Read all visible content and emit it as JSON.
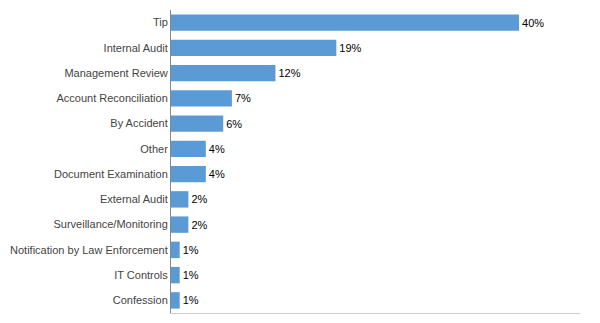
{
  "chart_data": {
    "type": "bar",
    "orientation": "horizontal",
    "categories": [
      "Confession",
      "IT Controls",
      "Notification by Law Enforcement",
      "Surveillance/Monitoring",
      "External Audit",
      "Document Examination",
      "Other",
      "By Accident",
      "Account Reconciliation",
      "Management Review",
      "Internal Audit",
      "Tip"
    ],
    "values": [
      1,
      1,
      1,
      2,
      2,
      4,
      4,
      6,
      7,
      12,
      19,
      40
    ],
    "value_labels": [
      "1%",
      "1%",
      "1%",
      "2%",
      "2%",
      "4%",
      "4%",
      "6%",
      "7%",
      "12%",
      "19%",
      "40%"
    ],
    "data_labels": true,
    "color": "#5b9bd5",
    "xlim": [
      0,
      47
    ],
    "tick_labels": "y",
    "grid": false
  }
}
